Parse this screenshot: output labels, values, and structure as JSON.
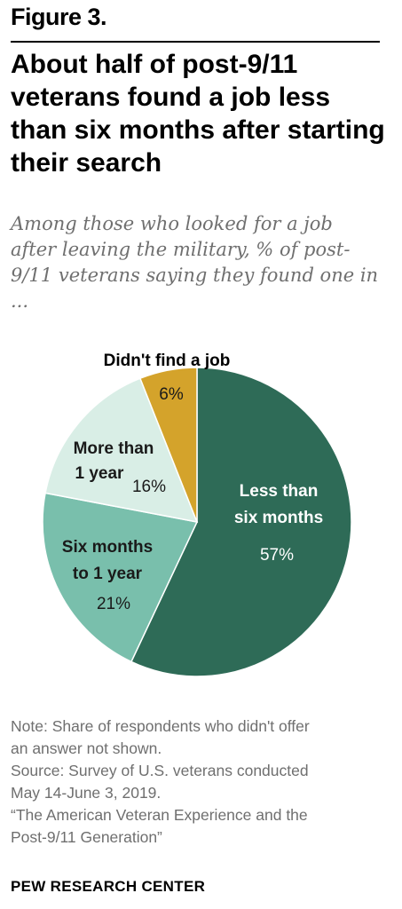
{
  "figure_label": "Figure 3.",
  "chart_data": {
    "type": "pie",
    "title": "About half of post-9/11 veterans found a job less than six months after starting their search",
    "subtitle": "Among those who looked for a job after leaving the military, % of post-9/11 veterans saying they found one in ...",
    "slices": [
      {
        "label_lines": [
          "Less than",
          "six months"
        ],
        "value": 57,
        "value_label": "57%",
        "color": "#2e6b57"
      },
      {
        "label_lines": [
          "Six months",
          "to 1 year"
        ],
        "value": 21,
        "value_label": "21%",
        "color": "#79bfac"
      },
      {
        "label_lines": [
          "More than",
          "1 year"
        ],
        "value": 16,
        "value_label": "16%",
        "color": "#d9eee6"
      },
      {
        "label_lines": [
          "Didn't find a job"
        ],
        "value": 6,
        "value_label": "6%",
        "color": "#d4a32b"
      }
    ]
  },
  "note_lines": [
    "Note: Share of respondents who didn't offer",
    "an answer not shown.",
    "Source: Survey of U.S. veterans conducted",
    "May 14-June 3, 2019.",
    "“The American Veteran Experience and the",
    "Post-9/11 Generation”"
  ],
  "source_org": "PEW RESEARCH CENTER"
}
